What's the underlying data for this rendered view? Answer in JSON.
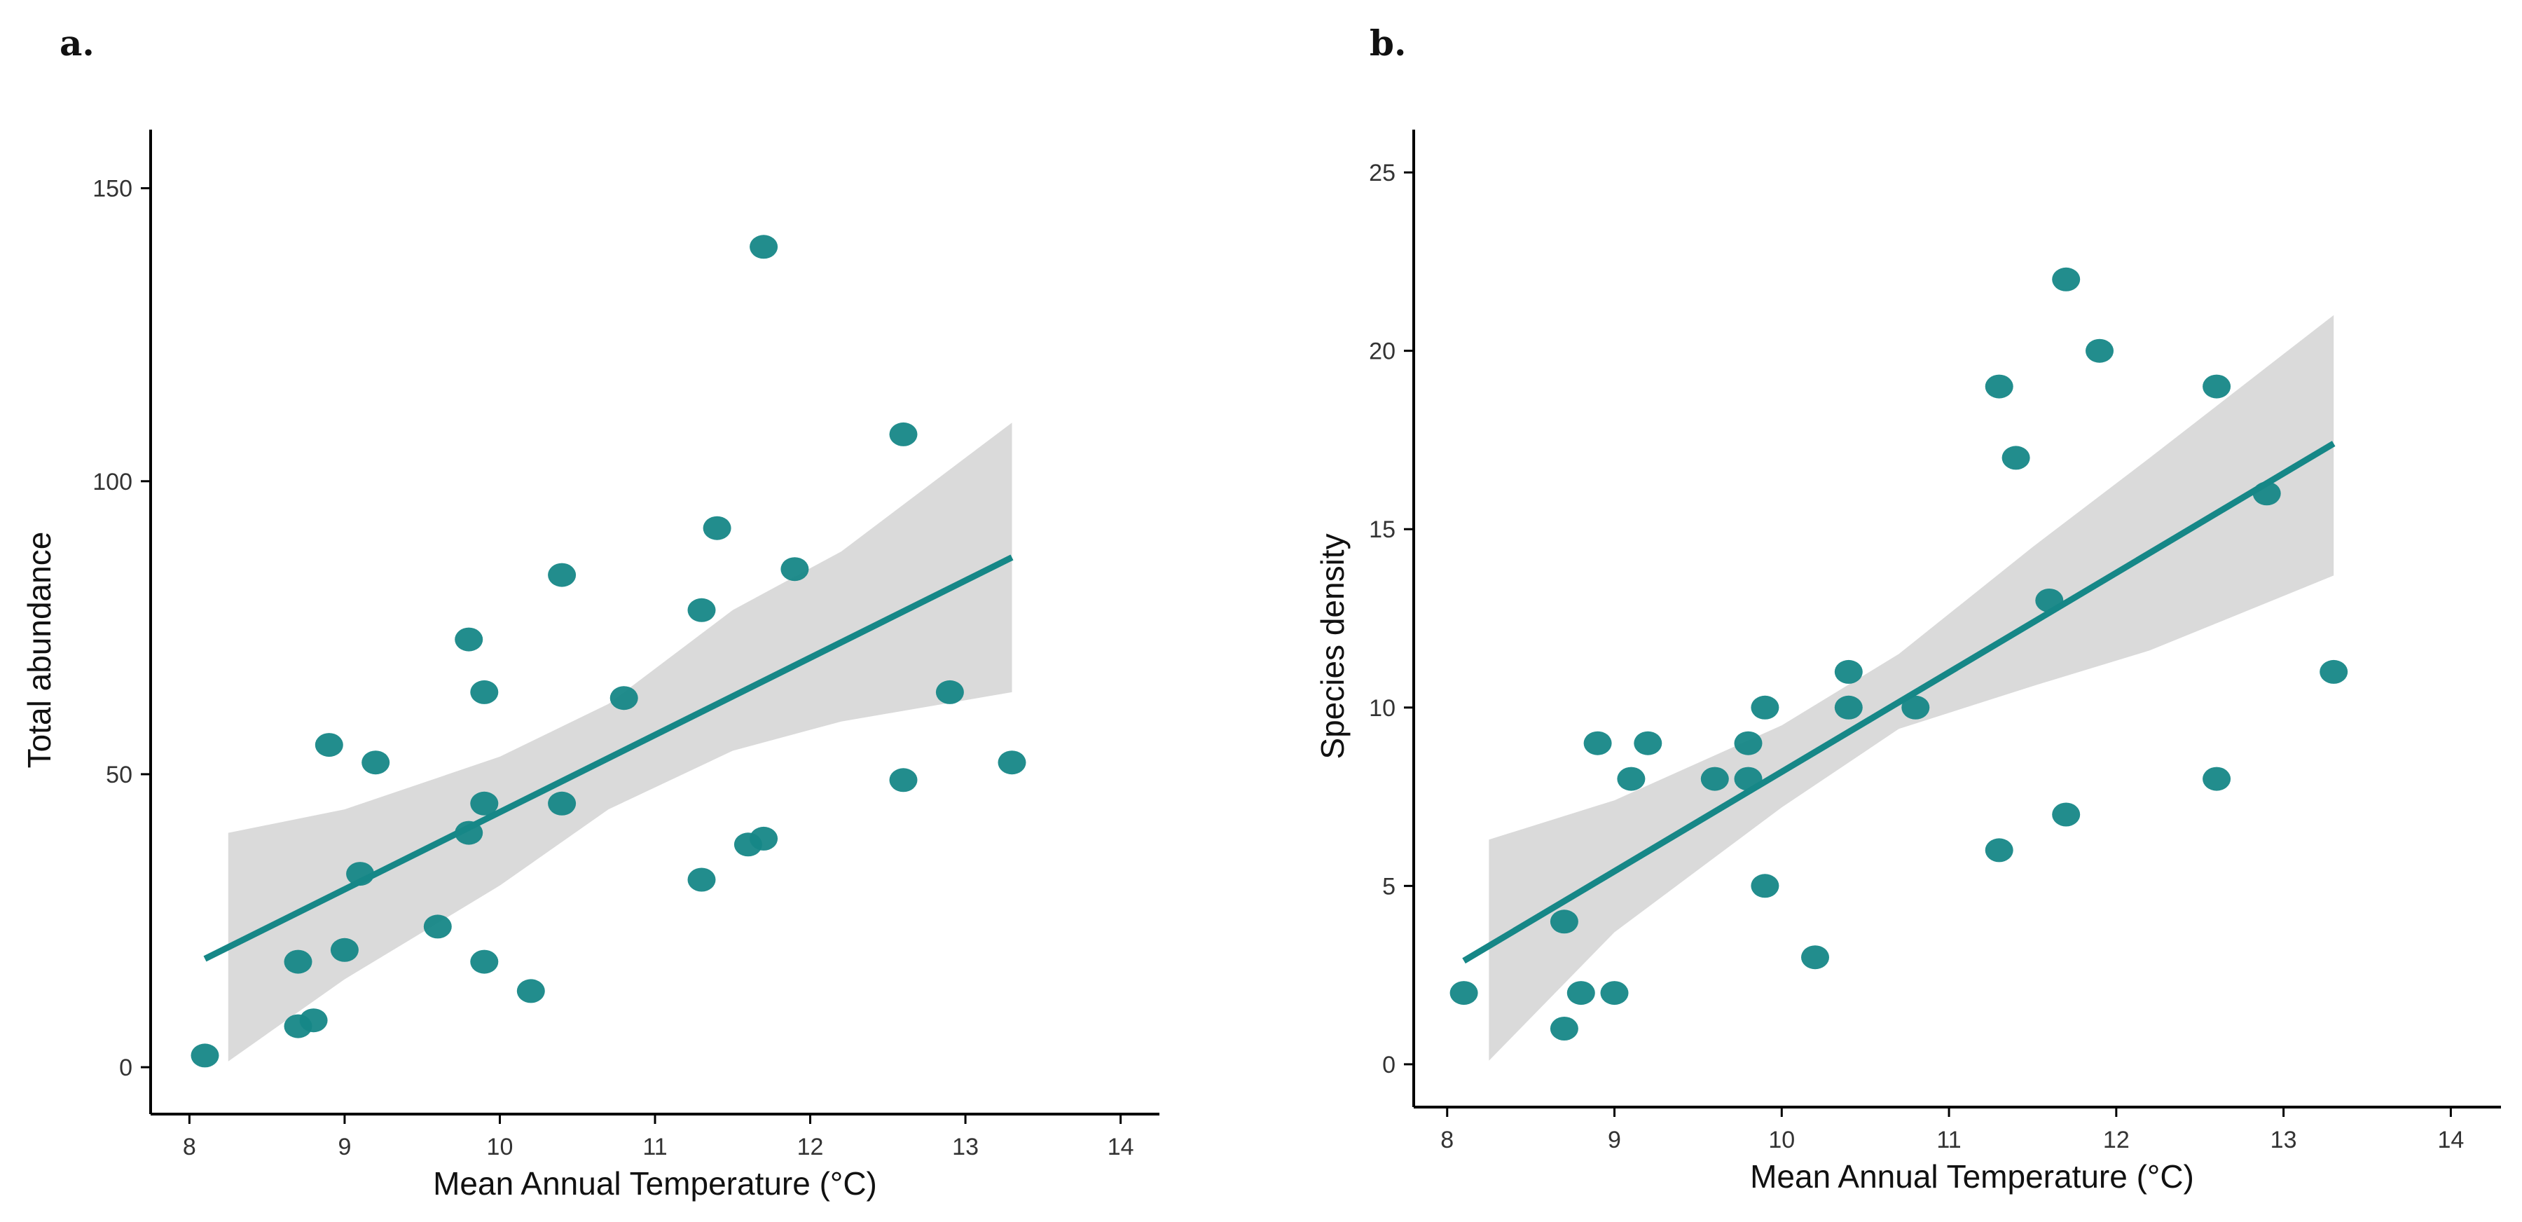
{
  "colors": {
    "point": "#168787",
    "line": "#168787",
    "band": "#d6d6d6",
    "axis": "#000000"
  },
  "chart_data": [
    {
      "type": "scatter",
      "panel_label": "a.",
      "xlabel": "Mean Annual Temperature (°C)",
      "ylabel": "Total abundance",
      "xlim": [
        7.75,
        14.25
      ],
      "ylim": [
        -8,
        160
      ],
      "x_ticks": [
        8,
        9,
        10,
        11,
        12,
        13,
        14
      ],
      "x_tick_labels": [
        "8",
        "9",
        "10",
        "11",
        "12",
        "13",
        "14"
      ],
      "y_ticks": [
        0,
        50,
        100,
        150
      ],
      "y_tick_labels": [
        "0",
        "50",
        "100",
        "150"
      ],
      "points": [
        [
          8.1,
          2
        ],
        [
          8.7,
          7
        ],
        [
          8.7,
          18
        ],
        [
          8.8,
          8
        ],
        [
          8.9,
          55
        ],
        [
          9.0,
          20
        ],
        [
          9.1,
          33
        ],
        [
          9.2,
          52
        ],
        [
          9.6,
          24
        ],
        [
          9.8,
          73
        ],
        [
          9.8,
          40
        ],
        [
          9.9,
          64
        ],
        [
          9.9,
          45
        ],
        [
          9.9,
          18
        ],
        [
          10.2,
          13
        ],
        [
          10.4,
          84
        ],
        [
          10.4,
          45
        ],
        [
          10.8,
          63
        ],
        [
          11.3,
          78
        ],
        [
          11.3,
          32
        ],
        [
          11.4,
          92
        ],
        [
          11.6,
          38
        ],
        [
          11.7,
          39
        ],
        [
          11.7,
          140
        ],
        [
          11.9,
          85
        ],
        [
          12.6,
          108
        ],
        [
          12.6,
          49
        ],
        [
          12.9,
          64
        ],
        [
          13.3,
          52
        ]
      ],
      "fit": {
        "x": [
          8.1,
          13.3
        ],
        "y": [
          18.5,
          87
        ]
      },
      "band": {
        "x": [
          8.25,
          9.0,
          10.0,
          10.7,
          11.5,
          12.2,
          13.3
        ],
        "upper": [
          40,
          44,
          53,
          62,
          78,
          88,
          110
        ],
        "lower": [
          1,
          15,
          31,
          44,
          54,
          59,
          64
        ]
      }
    },
    {
      "type": "scatter",
      "panel_label": "b.",
      "xlabel": "Mean Annual Temperature (°C)",
      "ylabel": "Species density",
      "xlim": [
        7.8,
        14.3
      ],
      "ylim": [
        -1.2,
        26.2
      ],
      "x_ticks": [
        8,
        9,
        10,
        11,
        12,
        13,
        14
      ],
      "x_tick_labels": [
        "8",
        "9",
        "10",
        "11",
        "12",
        "13",
        "14"
      ],
      "y_ticks": [
        0,
        5,
        10,
        15,
        20,
        25
      ],
      "y_tick_labels": [
        "0",
        "5",
        "10",
        "15",
        "20",
        "25"
      ],
      "points": [
        [
          8.1,
          2
        ],
        [
          8.7,
          4
        ],
        [
          8.7,
          1
        ],
        [
          8.8,
          2
        ],
        [
          8.9,
          9
        ],
        [
          9.0,
          2
        ],
        [
          9.1,
          8
        ],
        [
          9.2,
          9
        ],
        [
          9.6,
          8
        ],
        [
          9.8,
          9
        ],
        [
          9.8,
          8
        ],
        [
          9.9,
          10
        ],
        [
          9.9,
          5
        ],
        [
          10.2,
          3
        ],
        [
          10.4,
          11
        ],
        [
          10.4,
          10
        ],
        [
          10.8,
          10
        ],
        [
          11.3,
          19
        ],
        [
          11.3,
          6
        ],
        [
          11.4,
          17
        ],
        [
          11.6,
          13
        ],
        [
          11.7,
          22
        ],
        [
          11.7,
          7
        ],
        [
          11.9,
          20
        ],
        [
          12.6,
          19
        ],
        [
          12.6,
          8
        ],
        [
          12.9,
          16
        ],
        [
          13.3,
          11
        ]
      ],
      "fit": {
        "x": [
          8.1,
          13.3
        ],
        "y": [
          2.9,
          17.4
        ]
      },
      "band": {
        "x": [
          8.25,
          9.0,
          10.0,
          10.7,
          11.5,
          12.2,
          13.3
        ],
        "upper": [
          6.3,
          7.4,
          9.5,
          11.5,
          14.5,
          17.0,
          21.0
        ],
        "lower": [
          0.1,
          3.7,
          7.2,
          9.4,
          10.6,
          11.6,
          13.7
        ]
      }
    }
  ]
}
